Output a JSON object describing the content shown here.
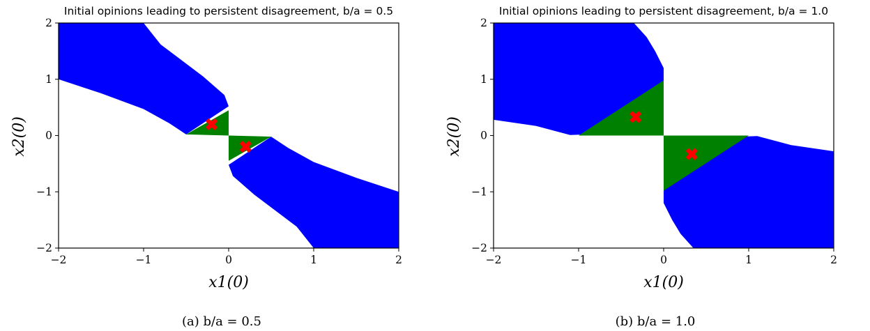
{
  "colors": {
    "blue": "#0000ff",
    "green": "#008000",
    "marker": "#ff0000",
    "axis": "#000000"
  },
  "chart_data": [
    {
      "type": "area",
      "title": "Initial opinions leading to persistent disagreement, b/a = 0.5",
      "caption": "(a) b/a = 0.5",
      "xlabel": "x1(0)",
      "ylabel": "x2(0)",
      "xlim": [
        -2,
        2
      ],
      "ylim": [
        -2,
        2
      ],
      "xticks": [
        "−2",
        "−1",
        "0",
        "1",
        "2"
      ],
      "yticks": [
        "−2",
        "−1",
        "0",
        "1",
        "2"
      ],
      "grid": false,
      "regions": {
        "blue": [
          [
            [
              -2,
              1.0
            ],
            [
              -1.5,
              0.75
            ],
            [
              -1.0,
              0.47
            ],
            [
              -0.7,
              0.22
            ],
            [
              -0.5,
              0.02
            ],
            [
              0.0,
              0.52
            ],
            [
              -0.05,
              0.72
            ],
            [
              -0.3,
              1.05
            ],
            [
              -0.8,
              1.62
            ],
            [
              -1.0,
              2.0
            ],
            [
              -2,
              2.0
            ]
          ],
          [
            [
              2,
              -1.0
            ],
            [
              1.5,
              -0.75
            ],
            [
              1.0,
              -0.47
            ],
            [
              0.7,
              -0.22
            ],
            [
              0.5,
              -0.02
            ],
            [
              0.0,
              -0.52
            ],
            [
              0.05,
              -0.72
            ],
            [
              0.3,
              -1.05
            ],
            [
              0.8,
              -1.62
            ],
            [
              1.0,
              -2.0
            ],
            [
              2,
              -2.0
            ]
          ]
        ],
        "green": [
          [
            [
              -0.5,
              0.02
            ],
            [
              0.0,
              0.45
            ],
            [
              0.0,
              0.0
            ]
          ],
          [
            [
              0.5,
              -0.02
            ],
            [
              0.0,
              -0.45
            ],
            [
              0.0,
              0.0
            ]
          ]
        ]
      },
      "markers": [
        {
          "x": -0.2,
          "y": 0.2
        },
        {
          "x": 0.2,
          "y": -0.2
        }
      ]
    },
    {
      "type": "area",
      "title": "Initial opinions leading to persistent disagreement, b/a = 1.0",
      "caption": "(b) b/a = 1.0",
      "xlabel": "x1(0)",
      "ylabel": "x2(0)",
      "xlim": [
        -2,
        2
      ],
      "ylim": [
        -2,
        2
      ],
      "xticks": [
        "−2",
        "−1",
        "0",
        "1",
        "2"
      ],
      "yticks": [
        "−2",
        "−1",
        "0",
        "1",
        "2"
      ],
      "grid": false,
      "regions": {
        "blue": [
          [
            [
              -2,
              2.0
            ],
            [
              -2,
              0.28
            ],
            [
              -1.5,
              0.17
            ],
            [
              -1.1,
              0.01
            ],
            [
              -0.9,
              0.02
            ],
            [
              0.0,
              0.97
            ],
            [
              0.0,
              1.2
            ],
            [
              -0.1,
              1.5
            ],
            [
              -0.2,
              1.75
            ],
            [
              -0.35,
              2.0
            ]
          ],
          [
            [
              2,
              -2.0
            ],
            [
              2,
              -0.28
            ],
            [
              1.5,
              -0.17
            ],
            [
              1.1,
              -0.01
            ],
            [
              0.9,
              -0.02
            ],
            [
              0.0,
              -0.97
            ],
            [
              0.0,
              -1.2
            ],
            [
              0.1,
              -1.5
            ],
            [
              0.2,
              -1.75
            ],
            [
              0.35,
              -2.0
            ]
          ]
        ],
        "green": [
          [
            [
              -1.0,
              0.0
            ],
            [
              0.0,
              0.0
            ],
            [
              0.0,
              0.98
            ]
          ],
          [
            [
              1.0,
              0.0
            ],
            [
              0.0,
              0.0
            ],
            [
              0.0,
              -0.98
            ]
          ]
        ]
      },
      "markers": [
        {
          "x": -0.33,
          "y": 0.33
        },
        {
          "x": 0.33,
          "y": -0.33
        }
      ]
    }
  ]
}
